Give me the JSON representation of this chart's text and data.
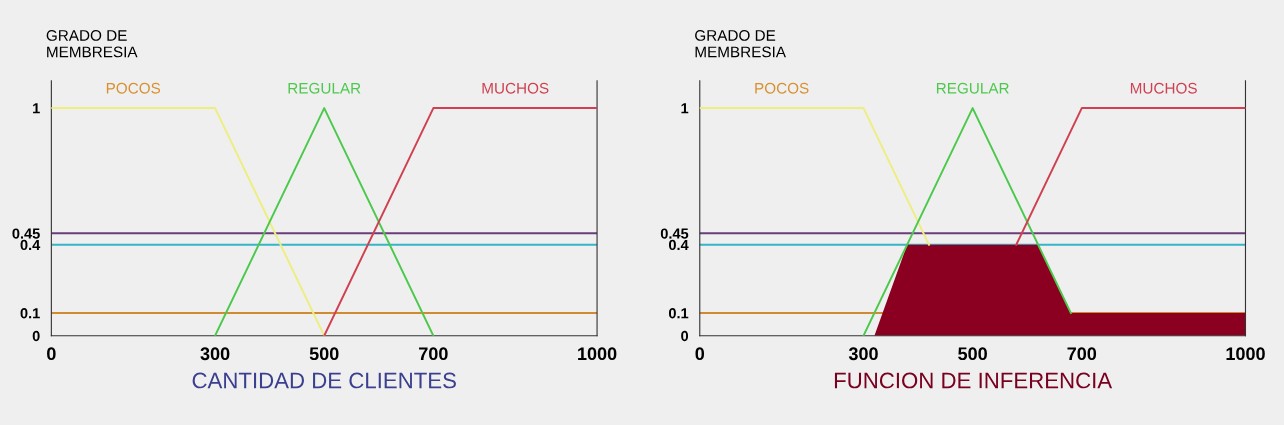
{
  "chart_data": [
    {
      "type": "line",
      "xlabel": "CANTIDAD DE CLIENTES",
      "ylabel": "GRADO DE\nMEMBRESIA",
      "xlim": [
        0,
        1000
      ],
      "ylim": [
        0,
        1.12
      ],
      "xticks": [
        0,
        300,
        500,
        700,
        1000
      ],
      "yticks": [
        0,
        0.1,
        0.4,
        0.45,
        1
      ],
      "grid": false,
      "legend": false,
      "series": [
        {
          "name": "POCOS",
          "color": "#eeee80",
          "x": [
            0,
            300,
            500
          ],
          "values": [
            1,
            1,
            0
          ]
        },
        {
          "name": "REGULAR",
          "color": "#4cc94c",
          "x": [
            300,
            500,
            700
          ],
          "values": [
            0,
            1,
            0
          ]
        },
        {
          "name": "MUCHOS",
          "color": "#d04050",
          "x": [
            500,
            700,
            1000
          ],
          "values": [
            0,
            1,
            1
          ]
        }
      ],
      "ref_lines": [
        {
          "axis": "y",
          "value": 0.45,
          "color": "#6a3d7a"
        },
        {
          "axis": "y",
          "value": 0.4,
          "color": "#35b5c8"
        },
        {
          "axis": "y",
          "value": 0.1,
          "color": "#d08a30"
        }
      ]
    },
    {
      "type": "line",
      "xlabel": "FUNCION DE INFERENCIA",
      "ylabel": "GRADO DE\nMEMBRESIA",
      "xlim": [
        0,
        1000
      ],
      "ylim": [
        0,
        1.12
      ],
      "xticks": [
        0,
        300,
        500,
        700,
        1000
      ],
      "yticks": [
        0,
        0.1,
        0.4,
        0.45,
        1
      ],
      "grid": false,
      "legend": false,
      "series": [
        {
          "name": "POCOS",
          "color": "#eeee80",
          "x": [
            0,
            300,
            420
          ],
          "values": [
            1,
            1,
            0.4
          ]
        },
        {
          "name": "REGULAR",
          "color": "#4cc94c",
          "x": [
            300,
            500,
            680
          ],
          "values": [
            0,
            1,
            0.1
          ]
        },
        {
          "name": "MUCHOS",
          "color": "#d04050",
          "x": [
            580,
            700,
            1000
          ],
          "values": [
            0.4,
            1,
            1
          ]
        },
        {
          "type": "area",
          "color": "#8b0020",
          "x": [
            320,
            380,
            620,
            680,
            1000
          ],
          "values": [
            0,
            0.4,
            0.4,
            0.1,
            0.1
          ]
        }
      ],
      "ref_lines": [
        {
          "axis": "y",
          "value": 0.45,
          "color": "#6a3d7a"
        },
        {
          "axis": "y",
          "value": 0.4,
          "color": "#35b5c8"
        },
        {
          "axis": "y",
          "value": 0.1,
          "color": "#d08a30"
        }
      ]
    }
  ]
}
